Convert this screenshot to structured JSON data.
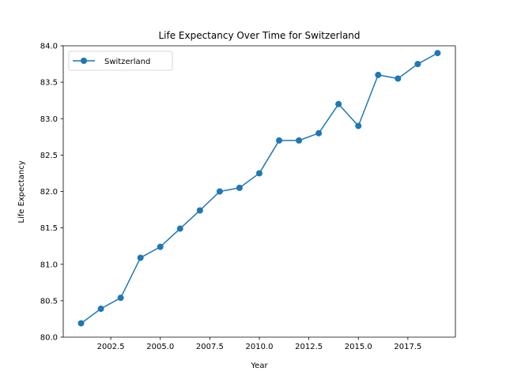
{
  "chart_data": {
    "type": "line",
    "title": "Life Expectancy Over Time for Switzerland",
    "xlabel": "Year",
    "ylabel": "Life Expectancy",
    "xlim": [
      2000.1,
      2019.9
    ],
    "ylim": [
      80.0,
      84.0
    ],
    "x_ticks": [
      2002.5,
      2005.0,
      2007.5,
      2010.0,
      2012.5,
      2015.0,
      2017.5
    ],
    "x_tick_labels": [
      "2002.5",
      "2005.0",
      "2007.5",
      "2010.0",
      "2012.5",
      "2015.0",
      "2017.5"
    ],
    "y_ticks": [
      80.0,
      80.5,
      81.0,
      81.5,
      82.0,
      82.5,
      83.0,
      83.5,
      84.0
    ],
    "y_tick_labels": [
      "80.0",
      "80.5",
      "81.0",
      "81.5",
      "82.0",
      "82.5",
      "83.0",
      "83.5",
      "84.0"
    ],
    "legend_position": "top-left",
    "grid": false,
    "series": [
      {
        "name": "Switzerland",
        "color": "#1f77b4",
        "marker": "circle",
        "x": [
          2001,
          2002,
          2003,
          2004,
          2005,
          2006,
          2007,
          2008,
          2009,
          2010,
          2011,
          2012,
          2013,
          2014,
          2015,
          2016,
          2017,
          2018,
          2019
        ],
        "y": [
          80.19,
          80.39,
          80.54,
          81.09,
          81.24,
          81.49,
          81.74,
          82.0,
          82.05,
          82.25,
          82.7,
          82.7,
          82.8,
          83.2,
          82.9,
          83.6,
          83.55,
          83.75,
          83.9
        ]
      }
    ]
  }
}
